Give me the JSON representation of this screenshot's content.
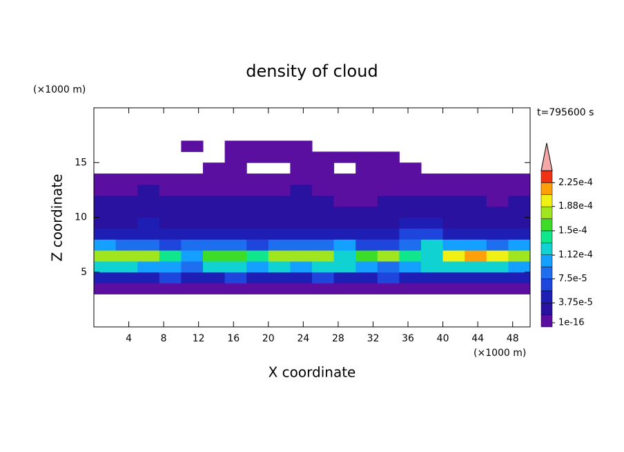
{
  "chart_data": {
    "type": "contour",
    "title": "density of cloud",
    "subtitle": "t=795600 s",
    "x_label": "X coordinate",
    "y_label": "Z coordinate",
    "x_unit_label": "(×1000 m)",
    "y_unit_label": "(×1000 m)",
    "xlim": [
      0,
      50
    ],
    "ylim": [
      0,
      20
    ],
    "xticks": [
      4,
      8,
      12,
      16,
      20,
      24,
      28,
      32,
      36,
      40,
      44,
      48
    ],
    "yticks": [
      5,
      10,
      15
    ],
    "x": [
      1.25,
      3.75,
      6.25,
      8.75,
      11.25,
      13.75,
      16.25,
      18.75,
      21.25,
      23.75,
      26.25,
      28.75,
      31.25,
      33.75,
      36.25,
      38.75,
      41.25,
      43.75,
      46.25,
      48.75
    ],
    "y": [
      3.5,
      4.5,
      5.5,
      6.5,
      7.5,
      8.5,
      9.5,
      10.5,
      11.5,
      12.5,
      13.5,
      14.5,
      15.5,
      16.5
    ],
    "z": [
      [
        1e-05,
        1e-05,
        1e-05,
        1e-05,
        1e-05,
        1e-05,
        1e-05,
        1e-05,
        1e-05,
        1e-05,
        1e-05,
        1e-05,
        1e-05,
        1e-05,
        1e-05,
        1e-05,
        1e-05,
        1e-05,
        1e-05,
        1e-05
      ],
      [
        5e-05,
        5e-05,
        5e-05,
        6e-05,
        5e-05,
        5e-05,
        6e-05,
        5e-05,
        5e-05,
        5e-05,
        6e-05,
        5e-05,
        5e-05,
        6e-05,
        5e-05,
        5e-05,
        5e-05,
        5e-05,
        5e-05,
        5e-05
      ],
      [
        0.00012,
        0.00012,
        0.00011,
        0.0001,
        8e-05,
        0.00012,
        0.00012,
        0.00011,
        0.00012,
        0.00011,
        0.00012,
        0.00012,
        0.0001,
        9e-05,
        0.00011,
        0.00012,
        0.00012,
        0.00012,
        0.00012,
        0.00011
      ],
      [
        0.00017,
        0.00018,
        0.00017,
        0.00014,
        0.00011,
        0.00015,
        0.00016,
        0.00014,
        0.00017,
        0.00018,
        0.00017,
        0.00013,
        0.00016,
        0.00017,
        0.00014,
        0.00012,
        0.0002,
        0.00021,
        0.00019,
        0.00017
      ],
      [
        0.0001,
        9e-05,
        9e-05,
        7e-05,
        8e-05,
        9e-05,
        8e-05,
        7e-05,
        9e-05,
        9e-05,
        9e-05,
        0.0001,
        7e-05,
        6e-05,
        9e-05,
        0.00013,
        0.00011,
        0.0001,
        9e-05,
        0.0001
      ],
      [
        5e-05,
        5e-05,
        5e-05,
        5e-05,
        4e-05,
        5e-05,
        5e-05,
        4e-05,
        5e-05,
        5e-05,
        4e-05,
        4e-05,
        5e-05,
        5e-05,
        6e-05,
        6e-05,
        5e-05,
        5e-05,
        5e-05,
        5e-05
      ],
      [
        3e-05,
        3e-05,
        4e-05,
        3e-05,
        3e-05,
        3e-05,
        3e-05,
        3e-05,
        3e-05,
        3e-05,
        3e-05,
        3e-05,
        3e-05,
        3e-05,
        4e-05,
        4e-05,
        3e-05,
        3e-05,
        3e-05,
        3e-05
      ],
      [
        2e-05,
        2e-05,
        3e-05,
        2e-05,
        2e-05,
        2e-05,
        3e-05,
        2e-05,
        2e-05,
        2e-05,
        2e-05,
        2e-05,
        2e-05,
        3e-05,
        3e-05,
        3e-05,
        2e-05,
        2e-05,
        2e-05,
        2e-05
      ],
      [
        2e-05,
        2e-05,
        2e-05,
        2e-05,
        2e-05,
        2e-05,
        2e-05,
        2e-05,
        2e-05,
        2e-05,
        2e-05,
        1e-05,
        1e-05,
        2e-05,
        2e-05,
        2e-05,
        2e-05,
        2e-05,
        1e-05,
        2e-05
      ],
      [
        1e-05,
        1e-05,
        2e-05,
        1e-05,
        1e-05,
        1e-05,
        1e-05,
        1e-05,
        1e-05,
        2e-05,
        1e-05,
        1e-05,
        1e-05,
        1e-05,
        1e-05,
        1e-05,
        1e-05,
        1e-05,
        1e-05,
        1e-05
      ],
      [
        1e-05,
        1e-05,
        1e-05,
        1e-05,
        1e-05,
        1e-05,
        1e-05,
        1e-05,
        1e-05,
        1e-05,
        1e-05,
        1e-05,
        1e-05,
        1e-05,
        1e-05,
        1e-05,
        1e-05,
        1e-05,
        1e-05,
        1e-05
      ],
      [
        null,
        null,
        null,
        null,
        null,
        1e-05,
        1e-05,
        null,
        null,
        1e-05,
        1e-05,
        null,
        1e-05,
        1e-05,
        1e-05,
        null,
        null,
        null,
        null,
        null
      ],
      [
        null,
        null,
        null,
        null,
        null,
        null,
        1e-05,
        1e-05,
        1e-05,
        1e-05,
        1e-05,
        1e-05,
        1e-05,
        1e-05,
        null,
        null,
        null,
        null,
        null,
        null
      ],
      [
        null,
        null,
        null,
        null,
        1e-05,
        null,
        1e-05,
        1e-05,
        1e-05,
        1e-05,
        null,
        null,
        null,
        null,
        null,
        null,
        null,
        null,
        null,
        null
      ]
    ],
    "levels": [
      1e-16,
      1.875e-05,
      3.75e-05,
      5.625e-05,
      7.5e-05,
      9.375e-05,
      0.0001125,
      0.00013125,
      0.00015,
      0.00016875,
      0.0001875,
      0.00020625,
      0.000225,
      0.00024375
    ],
    "colors": [
      "#5a0fa0",
      "#2a12a0",
      "#1e1eb4",
      "#1e46dc",
      "#1e6ef0",
      "#14a0ff",
      "#10d2d2",
      "#10e68c",
      "#3cdc28",
      "#a0e61e",
      "#f0f014",
      "#ffa00a",
      "#f03214"
    ],
    "extend_color": "#f4a8a8",
    "colorbar_ticks": [
      1e-16,
      {
        "value": 3.75e-05,
        "label": "3.75e-5"
      },
      {
        "value": 7.5e-05,
        "label": "7.5e-5"
      },
      {
        "value": 0.000112,
        "label": "1.12e-4"
      },
      {
        "value": 0.00015,
        "label": "1.5e-4"
      },
      {
        "value": 0.000188,
        "label": "1.88e-4"
      },
      {
        "value": 0.000225,
        "label": "2.25e-4"
      }
    ]
  }
}
